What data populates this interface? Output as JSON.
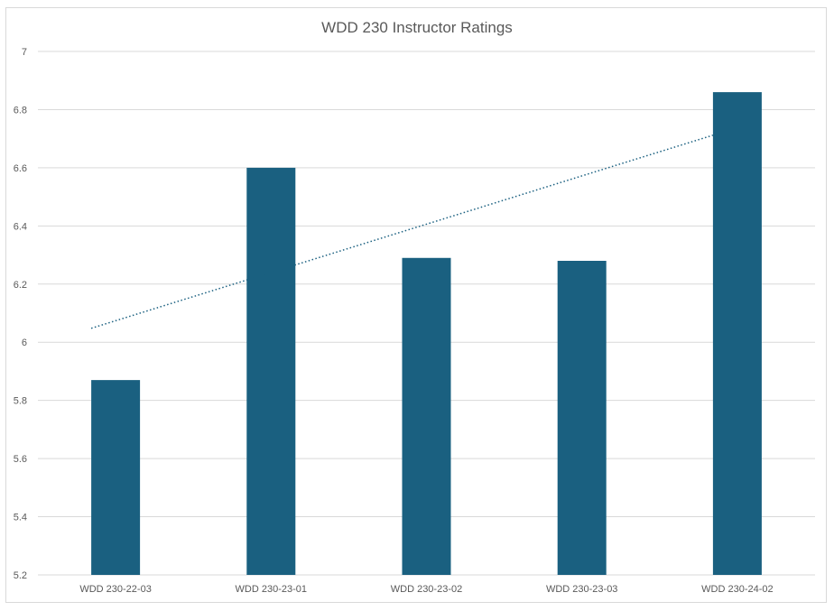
{
  "chart_data": {
    "type": "bar",
    "title": "WDD 230 Instructor Ratings",
    "xlabel": "",
    "ylabel": "",
    "categories": [
      "WDD 230-22-03",
      "WDD 230-23-01",
      "WDD 230-23-02",
      "WDD 230-23-03",
      "WDD 230-24-02"
    ],
    "values": [
      5.87,
      6.6,
      6.29,
      6.28,
      6.86
    ],
    "ylim": [
      5.2,
      7
    ],
    "yticks": [
      "5.2",
      "5.4",
      "5.6",
      "5.8",
      "6",
      "6.2",
      "6.4",
      "6.6",
      "6.8",
      "7"
    ],
    "grid": true,
    "legend": "none",
    "trendline": {
      "type": "linear",
      "style": "dotted"
    },
    "colors": {
      "bar": "#1a6080",
      "trendline": "#1a6080",
      "grid": "#d9d9d9",
      "text": "#595959"
    }
  }
}
